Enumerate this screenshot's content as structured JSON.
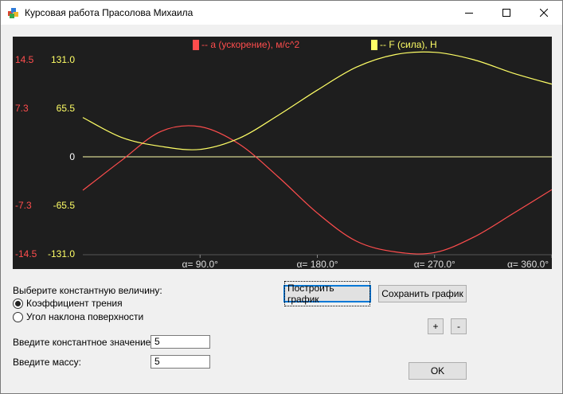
{
  "window": {
    "title": "Курсовая работа Прасолова Михаила"
  },
  "chart_data": {
    "type": "line",
    "x": [
      0,
      30,
      60,
      90,
      120,
      150,
      180,
      210,
      240,
      270,
      300,
      330,
      360
    ],
    "xlabel": "α",
    "xticks": [
      "α= 90.0°",
      "α= 180.0°",
      "α= 270.0°",
      "α= 360.0°"
    ],
    "series": [
      {
        "name": "-- a (ускорение), м/с^2",
        "color": "#ff4d4d",
        "axis": "left",
        "ylim": [
          -14.5,
          14.5
        ],
        "ticks": [
          "14.5",
          "7.3",
          "-7.3",
          "-14.5"
        ],
        "values": [
          -5.0,
          -0.5,
          3.8,
          4.5,
          1.9,
          -3.0,
          -8.4,
          -12.6,
          -14.2,
          -14.3,
          -12.0,
          -8.5,
          -4.9
        ]
      },
      {
        "name": "-- F (сила), Н",
        "color": "#ffff66",
        "axis": "right",
        "ylim": [
          -131.0,
          131.0
        ],
        "ticks": [
          "131.0",
          "65.5",
          "-65.5",
          "-131.0"
        ],
        "values": [
          53,
          26,
          14,
          10,
          25,
          56,
          90,
          121,
          138,
          141,
          131,
          113,
          98
        ]
      }
    ],
    "zero_label": "0",
    "grid": false,
    "legend": "top-center"
  },
  "controls": {
    "choose_label": "Выберите константную величину:",
    "radio_friction": "Коэффициент трения",
    "radio_angle": "Угол наклона поверхности",
    "constant_label": "Введите константное значение:",
    "constant_value": "5",
    "mass_label": "Введите массу:",
    "mass_value": "5",
    "build_button": "Построить график",
    "save_button": "Сохранить график",
    "zoom_in": "+",
    "zoom_out": "-",
    "ok_button": "OK"
  },
  "colors": {
    "accel": "#ff4d4d",
    "force": "#ffff66",
    "zero_line": "#ffffaa"
  }
}
